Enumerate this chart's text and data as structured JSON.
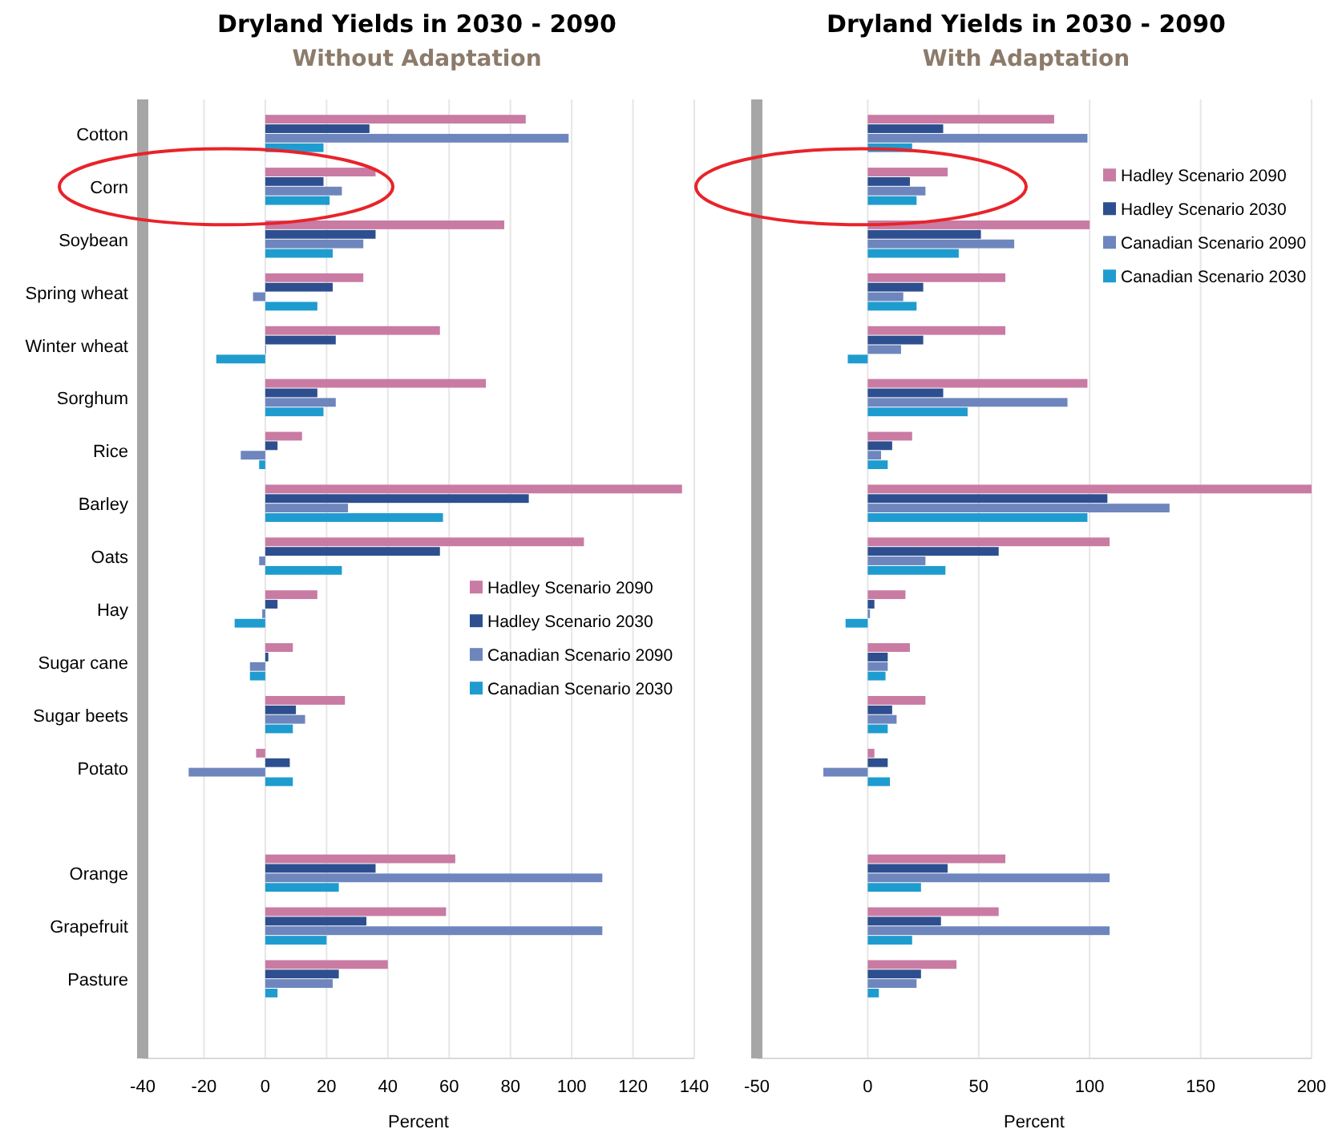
{
  "chart_data": [
    {
      "type": "bar",
      "orientation": "horizontal",
      "title": "Dryland Yields in 2030 - 2090",
      "subtitle": "Without Adaptation",
      "xlabel": "Percent",
      "categories": [
        "Cotton",
        "Corn",
        "Soybean",
        "Spring wheat",
        "Winter wheat",
        "Sorghum",
        "Rice",
        "Barley",
        "Oats",
        "Hay",
        "Sugar cane",
        "Sugar beets",
        "Potato",
        null,
        "Orange",
        "Grapefruit",
        "Pasture"
      ],
      "series": [
        {
          "name": "Hadley Scenario 2090",
          "color": "#c97ba3",
          "values": [
            85,
            36,
            78,
            32,
            57,
            72,
            12,
            136,
            104,
            17,
            9,
            26,
            -3,
            null,
            62,
            59,
            40
          ]
        },
        {
          "name": "Hadley Scenario 2030",
          "color": "#2e4f8f",
          "values": [
            34,
            19,
            36,
            22,
            23,
            17,
            4,
            86,
            57,
            4,
            1,
            10,
            8,
            null,
            36,
            33,
            24
          ]
        },
        {
          "name": "Canadian Scenario 2090",
          "color": "#6e86bd",
          "values": [
            99,
            25,
            32,
            -4,
            0,
            23,
            -8,
            27,
            -2,
            -1,
            -5,
            13,
            -25,
            null,
            110,
            110,
            22
          ]
        },
        {
          "name": "Canadian Scenario 2030",
          "color": "#1f9ccf",
          "values": [
            19,
            21,
            22,
            17,
            -16,
            19,
            -2,
            58,
            25,
            -10,
            -5,
            9,
            9,
            null,
            24,
            20,
            4
          ]
        }
      ],
      "xlim": [
        -40,
        140
      ],
      "xticks": [
        -40,
        -20,
        0,
        20,
        40,
        60,
        80,
        100,
        120,
        140
      ],
      "grid": "x",
      "legend": "right"
    },
    {
      "type": "bar",
      "orientation": "horizontal",
      "title": "Dryland Yields in 2030 - 2090",
      "subtitle": "With Adaptation",
      "xlabel": "Percent",
      "categories": [
        null,
        null,
        null,
        null,
        null,
        null,
        null,
        null,
        null,
        null,
        null,
        null,
        null,
        null,
        null,
        null,
        null
      ],
      "series": [
        {
          "name": "Hadley Scenario 2090",
          "color": "#c97ba3",
          "values": [
            84,
            36,
            100,
            62,
            62,
            99,
            20,
            200,
            109,
            17,
            19,
            26,
            3,
            null,
            62,
            59,
            40
          ]
        },
        {
          "name": "Hadley Scenario 2030",
          "color": "#2e4f8f",
          "values": [
            34,
            19,
            51,
            25,
            25,
            34,
            11,
            108,
            59,
            3,
            9,
            11,
            9,
            null,
            36,
            33,
            24
          ]
        },
        {
          "name": "Canadian Scenario 2090",
          "color": "#6e86bd",
          "values": [
            99,
            26,
            66,
            16,
            15,
            90,
            6,
            136,
            26,
            1,
            9,
            13,
            -20,
            null,
            109,
            109,
            22
          ]
        },
        {
          "name": "Canadian Scenario 2030",
          "color": "#1f9ccf",
          "values": [
            20,
            22,
            41,
            22,
            -9,
            45,
            9,
            99,
            35,
            -10,
            8,
            9,
            10,
            null,
            24,
            20,
            5
          ]
        }
      ],
      "xlim": [
        -50,
        200
      ],
      "xticks": [
        -50,
        0,
        50,
        100,
        150,
        200
      ],
      "grid": "x",
      "legend": "top right"
    }
  ]
}
